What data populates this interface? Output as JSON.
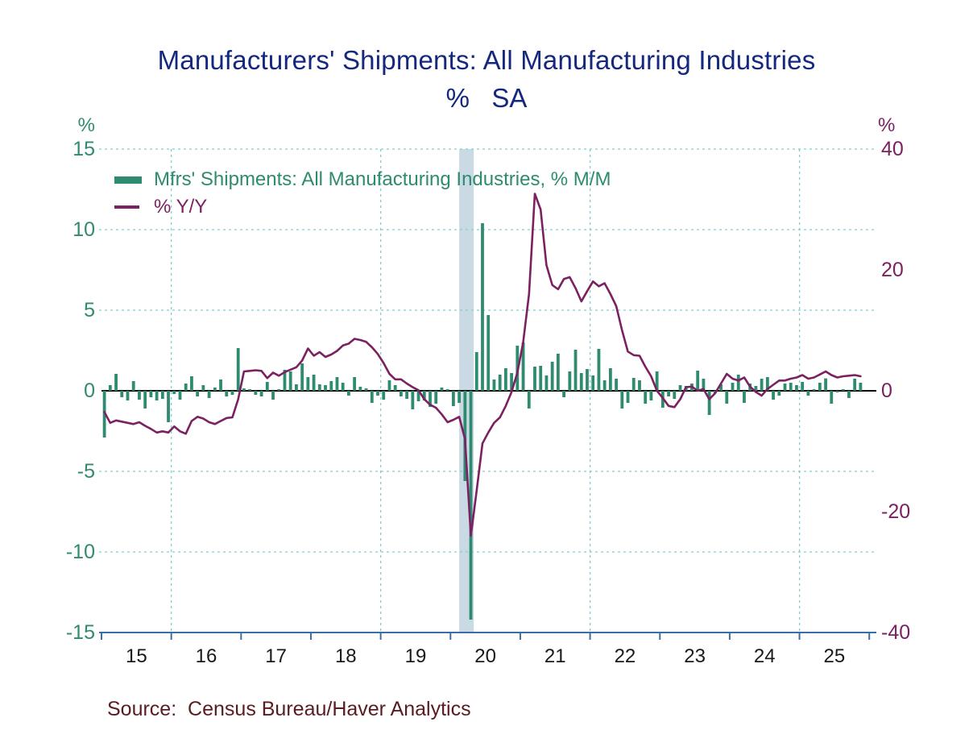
{
  "page": {
    "background": "#ffffff"
  },
  "header": {
    "title": "Manufacturers' Shipments: All Manufacturing Industries",
    "subtitle": "%   SA"
  },
  "legend": [
    {
      "label": "Mfrs' Shipments: All Manufacturing Industries, % M/M",
      "swatch": "bar",
      "color": "#2e8b6f"
    },
    {
      "label": "% Y/Y",
      "swatch": "line",
      "color": "#7b2161"
    }
  ],
  "source": {
    "label": "Source:  Census Bureau/Haver Analytics",
    "color": "#5a1c20"
  },
  "chart_data": {
    "type": "combo",
    "frequency": "monthly",
    "x_start": "2015-01",
    "x_tick_labels": [
      "15",
      "16",
      "17",
      "18",
      "19",
      "20",
      "21",
      "22",
      "23",
      "24",
      "25"
    ],
    "left_axis": {
      "unit": "%",
      "min": -15,
      "max": 15,
      "ticks": [
        15,
        10,
        5,
        0,
        -5,
        -10,
        -15
      ],
      "color": "#2e8b6f"
    },
    "right_axis": {
      "unit": "%",
      "min": -40,
      "max": 40,
      "ticks": [
        40,
        20,
        0,
        -20,
        -40
      ],
      "color": "#7b2161"
    },
    "gridline_year_offsets": [
      1,
      4,
      7,
      10
    ],
    "recession_band": {
      "from_month": 61.5,
      "to_month": 64,
      "color": "#cadae4",
      "note": "2020 recession shading"
    },
    "styling": {
      "gridline_color": "#7fcfcf",
      "axis_line_color": "#3a6ea8",
      "zero_line_color": "#000000",
      "x_label_color": "#1a1a1a"
    },
    "series": [
      {
        "name": "Mfrs' Shipments: All Manufacturing Industries, % M/M",
        "type": "bar",
        "axis": "left",
        "color": "#2e8b6f",
        "values": [
          -2.9,
          0.35,
          1.05,
          -0.4,
          -0.6,
          0.6,
          -0.55,
          -1.1,
          -0.4,
          -0.6,
          -0.5,
          -1.95,
          -0.2,
          -0.55,
          0.45,
          0.9,
          -0.35,
          0.35,
          -0.45,
          0.2,
          0.7,
          -0.35,
          -0.25,
          2.65,
          0.15,
          0.1,
          -0.25,
          -0.35,
          0.55,
          -0.55,
          0.1,
          1.3,
          1.2,
          0.4,
          1.7,
          0.85,
          1.0,
          0.4,
          0.35,
          0.6,
          0.85,
          0.5,
          -0.3,
          0.85,
          0.25,
          0.15,
          -0.75,
          -0.3,
          -0.55,
          0.65,
          0.35,
          -0.35,
          -0.5,
          -1.15,
          -0.65,
          -0.6,
          -1.0,
          -0.8,
          0.2,
          0.1,
          -0.95,
          -0.75,
          -5.6,
          -14.2,
          2.4,
          10.4,
          4.7,
          0.7,
          1.0,
          1.4,
          1.1,
          2.8,
          3.0,
          -1.1,
          1.5,
          1.55,
          0.95,
          1.8,
          2.3,
          -0.4,
          1.2,
          2.55,
          1.1,
          1.35,
          0.95,
          2.6,
          0.65,
          1.4,
          0.75,
          -1.1,
          -0.75,
          0.8,
          0.65,
          -0.8,
          -0.6,
          1.2,
          -1.05,
          -0.35,
          -0.5,
          0.35,
          0.3,
          0.45,
          1.25,
          0.75,
          -1.5,
          -0.15,
          0.4,
          -0.8,
          0.5,
          1.0,
          -0.75,
          0.45,
          0.3,
          0.75,
          0.85,
          -0.55,
          -0.3,
          0.45,
          0.5,
          0.35,
          0.55,
          -0.3,
          0.1,
          0.5,
          0.77,
          -0.8,
          -0.1,
          0.1,
          -0.45,
          0.75,
          0.5
        ]
      },
      {
        "name": "% Y/Y",
        "type": "line",
        "axis": "right",
        "color": "#7b2161",
        "values": [
          -3.5,
          -5.3,
          -4.9,
          -5.1,
          -5.3,
          -5.5,
          -5.2,
          -5.8,
          -6.3,
          -6.9,
          -6.7,
          -6.9,
          -5.9,
          -6.7,
          -7.1,
          -5.0,
          -4.3,
          -4.6,
          -5.2,
          -5.5,
          -5.0,
          -4.5,
          -4.4,
          -1.4,
          3.2,
          3.3,
          3.4,
          3.3,
          2.1,
          3.0,
          2.5,
          3.1,
          3.5,
          3.9,
          5.0,
          7.0,
          5.8,
          6.4,
          5.6,
          6.0,
          6.6,
          7.5,
          7.8,
          8.6,
          8.4,
          8.1,
          7.2,
          6.1,
          4.6,
          2.8,
          1.9,
          1.9,
          1.2,
          0.6,
          0.1,
          -1.4,
          -2.3,
          -2.8,
          -3.9,
          -5.2,
          -4.8,
          -4.3,
          -8.0,
          -24.0,
          -16.5,
          -8.7,
          -6.9,
          -5.3,
          -4.4,
          -2.5,
          -0.2,
          3.0,
          8.0,
          16.0,
          32.6,
          30.0,
          20.8,
          17.5,
          16.8,
          18.5,
          18.8,
          17.0,
          14.8,
          16.5,
          18.1,
          17.3,
          17.8,
          16.0,
          14.0,
          10.0,
          6.5,
          5.9,
          5.8,
          4.0,
          2.4,
          0.0,
          -1.2,
          -2.5,
          -2.7,
          -1.4,
          0.6,
          0.7,
          0.0,
          0.3,
          -1.4,
          -0.4,
          1.2,
          2.8,
          2.0,
          1.7,
          2.2,
          0.7,
          -0.2,
          -0.8,
          0.3,
          1.0,
          1.7,
          1.7,
          2.0,
          2.2,
          2.6,
          2.0,
          2.2,
          2.7,
          3.2,
          2.6,
          2.2,
          2.4,
          2.5,
          2.6,
          2.4
        ]
      }
    ]
  }
}
